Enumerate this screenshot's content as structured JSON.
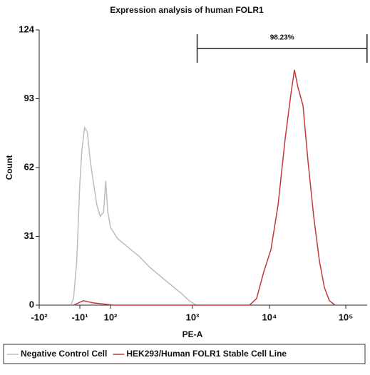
{
  "chart_data": {
    "type": "line",
    "title": "Expression analysis of human FOLR1",
    "x_label": "PE-A",
    "y_label": "Count",
    "xscale": "biexponential",
    "xlim": [
      -100,
      190000
    ],
    "xticks": [
      {
        "value": -100,
        "label": "-10²"
      },
      {
        "value": -10,
        "label": "-10¹"
      },
      {
        "value": 100,
        "label": "10²"
      },
      {
        "value": 1000,
        "label": "10³"
      },
      {
        "value": 10000,
        "label": "10⁴"
      },
      {
        "value": 100000,
        "label": "10⁵"
      }
    ],
    "ylim": [
      0,
      124
    ],
    "yticks": [
      0,
      31,
      62,
      93,
      124
    ],
    "gate": {
      "label": "98.23%",
      "range": [
        1150,
        190000
      ]
    },
    "series": [
      {
        "name": "Negative Control Cell",
        "color": "#bdbdbd",
        "x": [
          -17,
          -14.5,
          -12,
          -10,
          -5.9,
          -2.7,
          -1,
          0,
          1.06,
          3.5,
          8.8,
          20,
          33,
          53,
          100,
          122,
          165,
          224,
          303,
          409,
          552,
          747,
          910,
          1112
        ],
        "values": [
          0,
          3,
          20,
          55,
          70,
          80,
          78,
          65,
          55,
          45,
          40,
          42,
          56,
          42,
          35,
          30,
          26,
          22,
          17,
          13,
          9,
          5,
          2,
          0
        ]
      },
      {
        "name": "HEK293/Human FOLR1 Stable Cell Line",
        "color": "#c0393b",
        "x": [
          -14.5,
          -4,
          1.06,
          110,
          5500,
          6800,
          8440,
          10440,
          12950,
          16060,
          19060,
          21230,
          23650,
          27490,
          31990,
          37960,
          45070,
          52480,
          60950,
          72400
        ],
        "values": [
          0,
          2,
          1,
          0,
          0,
          3,
          15,
          25,
          45,
          75,
          95,
          106,
          98,
          90,
          65,
          40,
          20,
          8,
          2,
          0
        ]
      }
    ]
  }
}
